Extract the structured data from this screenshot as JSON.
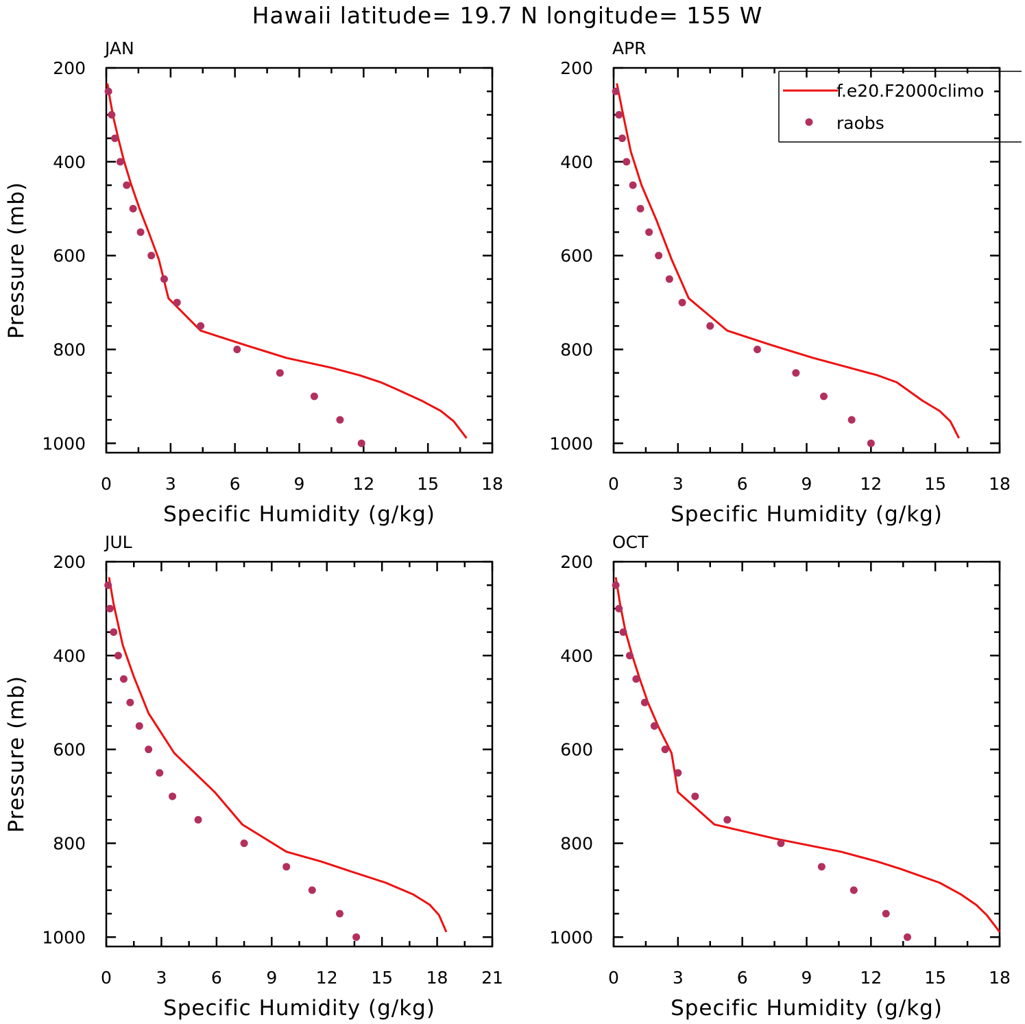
{
  "title": "Hawaii  latitude= 19.7 N longitude= 155 W",
  "colors": {
    "model": "#ee1111",
    "obs": "#b2305e",
    "axis": "#000000"
  },
  "legend": {
    "entries": [
      {
        "label": "f.e20.F2000climo",
        "kind": "line"
      },
      {
        "label": "raobs",
        "kind": "marker"
      }
    ]
  },
  "chart_data": [
    {
      "type": "line",
      "title": "JAN",
      "xlabel": "Specific Humidity (g/kg)",
      "ylabel": "Pressure (mb)",
      "xlim": [
        0,
        18
      ],
      "ylim": [
        1020,
        200
      ],
      "xticks": [
        0,
        3,
        6,
        9,
        12,
        15,
        18
      ],
      "yticks": [
        200,
        400,
        600,
        800,
        1000
      ],
      "series": [
        {
          "name": "f.e20.F2000climo",
          "x": [
            0.05,
            0.18,
            0.33,
            0.55,
            0.82,
            1.15,
            1.55,
            2.0,
            2.45,
            2.9,
            4.4,
            6.5,
            8.4,
            10.5,
            11.8,
            12.8,
            13.5,
            14.7,
            15.6,
            16.2,
            16.8
          ],
          "y": [
            233,
            268,
            305,
            348,
            397,
            447,
            500,
            553,
            608,
            691,
            760,
            791,
            818,
            839,
            855,
            870,
            884,
            909,
            931,
            953,
            989
          ]
        },
        {
          "name": "raobs",
          "x": [
            0.1,
            0.25,
            0.4,
            0.65,
            0.95,
            1.25,
            1.6,
            2.1,
            2.7,
            3.3,
            4.4,
            6.1,
            8.1,
            9.7,
            10.9,
            11.9
          ],
          "y": [
            250,
            300,
            350,
            400,
            450,
            500,
            550,
            600,
            650,
            700,
            750,
            800,
            850,
            900,
            950,
            1000
          ]
        }
      ]
    },
    {
      "type": "line",
      "title": "APR",
      "xlabel": "Specific Humidity (g/kg)",
      "ylabel": "",
      "xlim": [
        0,
        18
      ],
      "ylim": [
        1020,
        200
      ],
      "xticks": [
        0,
        3,
        6,
        9,
        12,
        15,
        18
      ],
      "yticks": [
        200,
        400,
        600,
        800,
        1000
      ],
      "series": [
        {
          "name": "f.e20.F2000climo",
          "x": [
            0.15,
            0.4,
            0.8,
            1.3,
            2.0,
            2.7,
            3.5,
            5.3,
            7.3,
            9.3,
            11.0,
            12.3,
            13.2,
            14.4,
            15.2,
            15.7,
            16.1
          ],
          "y": [
            233,
            290,
            378,
            450,
            525,
            608,
            691,
            760,
            790,
            818,
            839,
            855,
            870,
            909,
            931,
            953,
            989
          ]
        },
        {
          "name": "raobs",
          "x": [
            0.1,
            0.25,
            0.4,
            0.6,
            0.9,
            1.25,
            1.65,
            2.1,
            2.6,
            3.2,
            4.5,
            6.7,
            8.5,
            9.8,
            11.1,
            12.0
          ],
          "y": [
            250,
            300,
            350,
            400,
            450,
            500,
            550,
            600,
            650,
            700,
            750,
            800,
            850,
            900,
            950,
            1000
          ]
        }
      ]
    },
    {
      "type": "line",
      "title": "JUL",
      "xlabel": "Specific Humidity (g/kg)",
      "ylabel": "Pressure (mb)",
      "xlim": [
        0,
        21
      ],
      "ylim": [
        1020,
        200
      ],
      "xticks": [
        0,
        3,
        6,
        9,
        12,
        15,
        18,
        21
      ],
      "yticks": [
        200,
        400,
        600,
        800,
        1000
      ],
      "series": [
        {
          "name": "f.e20.F2000climo",
          "x": [
            0.15,
            0.4,
            0.9,
            1.5,
            2.3,
            3.7,
            5.9,
            7.4,
            9.8,
            11.7,
            13.3,
            15.2,
            16.7,
            17.6,
            18.1,
            18.5
          ],
          "y": [
            233,
            290,
            378,
            445,
            523,
            608,
            691,
            760,
            818,
            839,
            860,
            884,
            909,
            931,
            953,
            989
          ]
        },
        {
          "name": "raobs",
          "x": [
            0.1,
            0.2,
            0.4,
            0.65,
            0.95,
            1.3,
            1.8,
            2.3,
            2.9,
            3.6,
            5.0,
            7.5,
            9.8,
            11.2,
            12.7,
            13.6
          ],
          "y": [
            250,
            300,
            350,
            400,
            450,
            500,
            550,
            600,
            650,
            700,
            750,
            800,
            850,
            900,
            950,
            1000
          ]
        }
      ]
    },
    {
      "type": "line",
      "title": "OCT",
      "xlabel": "Specific Humidity (g/kg)",
      "ylabel": "",
      "xlim": [
        0,
        18
      ],
      "ylim": [
        1020,
        200
      ],
      "xticks": [
        0,
        3,
        6,
        9,
        12,
        15,
        18
      ],
      "yticks": [
        200,
        400,
        600,
        800,
        1000
      ],
      "series": [
        {
          "name": "f.e20.F2000climo",
          "x": [
            0.1,
            0.3,
            0.55,
            0.85,
            1.2,
            1.6,
            2.1,
            2.7,
            3.0,
            4.7,
            7.5,
            10.6,
            12.3,
            13.4,
            15.2,
            16.2,
            16.9,
            17.4,
            18.0
          ],
          "y": [
            233,
            290,
            348,
            397,
            447,
            500,
            553,
            608,
            691,
            760,
            790,
            818,
            839,
            855,
            884,
            909,
            931,
            953,
            989
          ]
        },
        {
          "name": "raobs",
          "x": [
            0.1,
            0.25,
            0.45,
            0.75,
            1.05,
            1.45,
            1.9,
            2.4,
            3.0,
            3.8,
            5.3,
            7.8,
            9.7,
            11.2,
            12.7,
            13.7
          ],
          "y": [
            250,
            300,
            350,
            400,
            450,
            500,
            550,
            600,
            650,
            700,
            750,
            800,
            850,
            900,
            950,
            1000
          ]
        }
      ]
    }
  ]
}
